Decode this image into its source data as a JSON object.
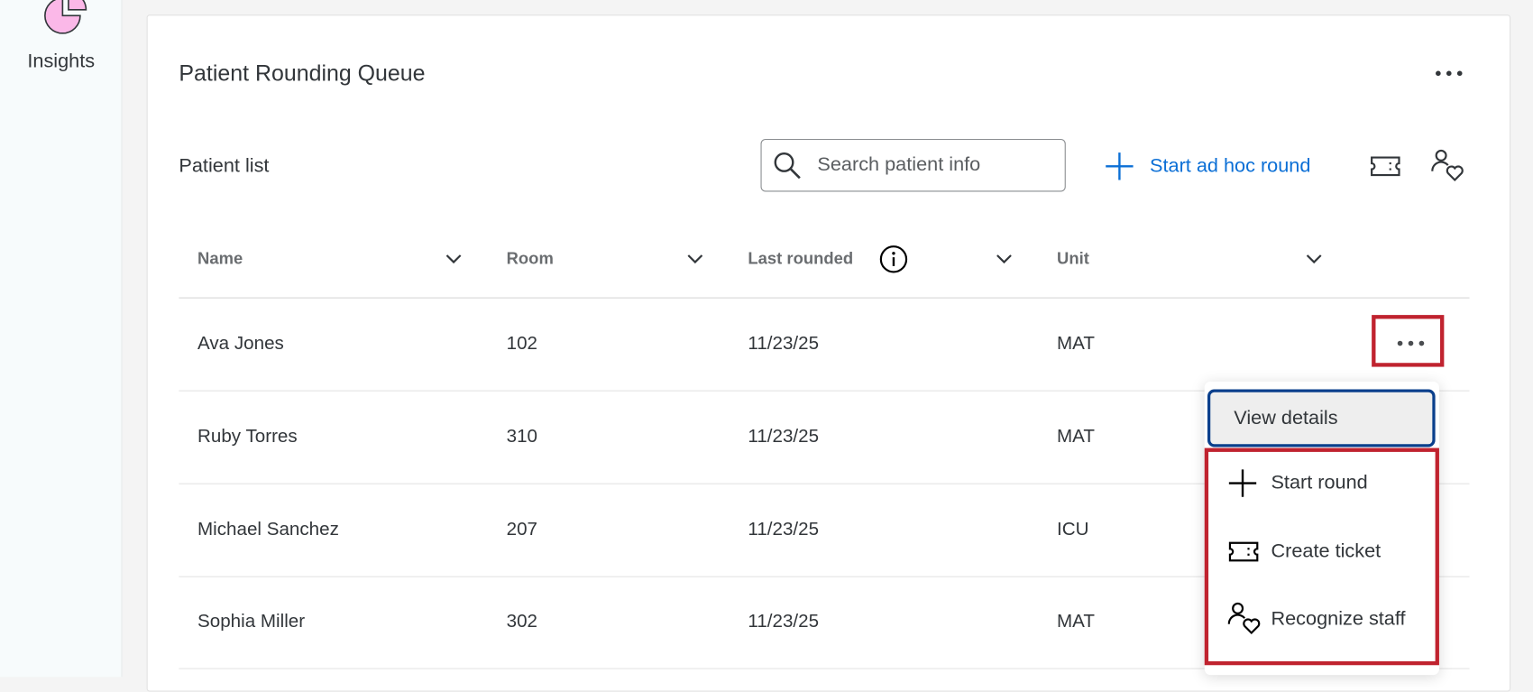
{
  "sidebar": {
    "items": [
      {
        "label": "Insights",
        "icon": "pie-chart-icon",
        "icon_color": "#fbb8e8"
      }
    ]
  },
  "card": {
    "title": "Patient Rounding Queue",
    "subtitle": "Patient list"
  },
  "toolbar": {
    "search_placeholder": "Search patient info",
    "start_adhoc_label": "Start ad hoc round",
    "accent": "#0b6fd6"
  },
  "table": {
    "columns": [
      "Name",
      "Room",
      "Last rounded",
      "Unit"
    ],
    "rows": [
      [
        "Ava Jones",
        "102",
        "11/23/25",
        "MAT"
      ],
      [
        "Ruby Torres",
        "310",
        "11/23/25",
        "MAT"
      ],
      [
        "Michael Sanchez",
        "207",
        "11/23/25",
        "ICU"
      ],
      [
        "Sophia Miller",
        "302",
        "11/23/25",
        "MAT"
      ]
    ]
  },
  "menu": {
    "items": [
      "View details",
      "Start round",
      "Create ticket",
      "Recognize staff"
    ]
  },
  "highlight_color": "#c0232f"
}
